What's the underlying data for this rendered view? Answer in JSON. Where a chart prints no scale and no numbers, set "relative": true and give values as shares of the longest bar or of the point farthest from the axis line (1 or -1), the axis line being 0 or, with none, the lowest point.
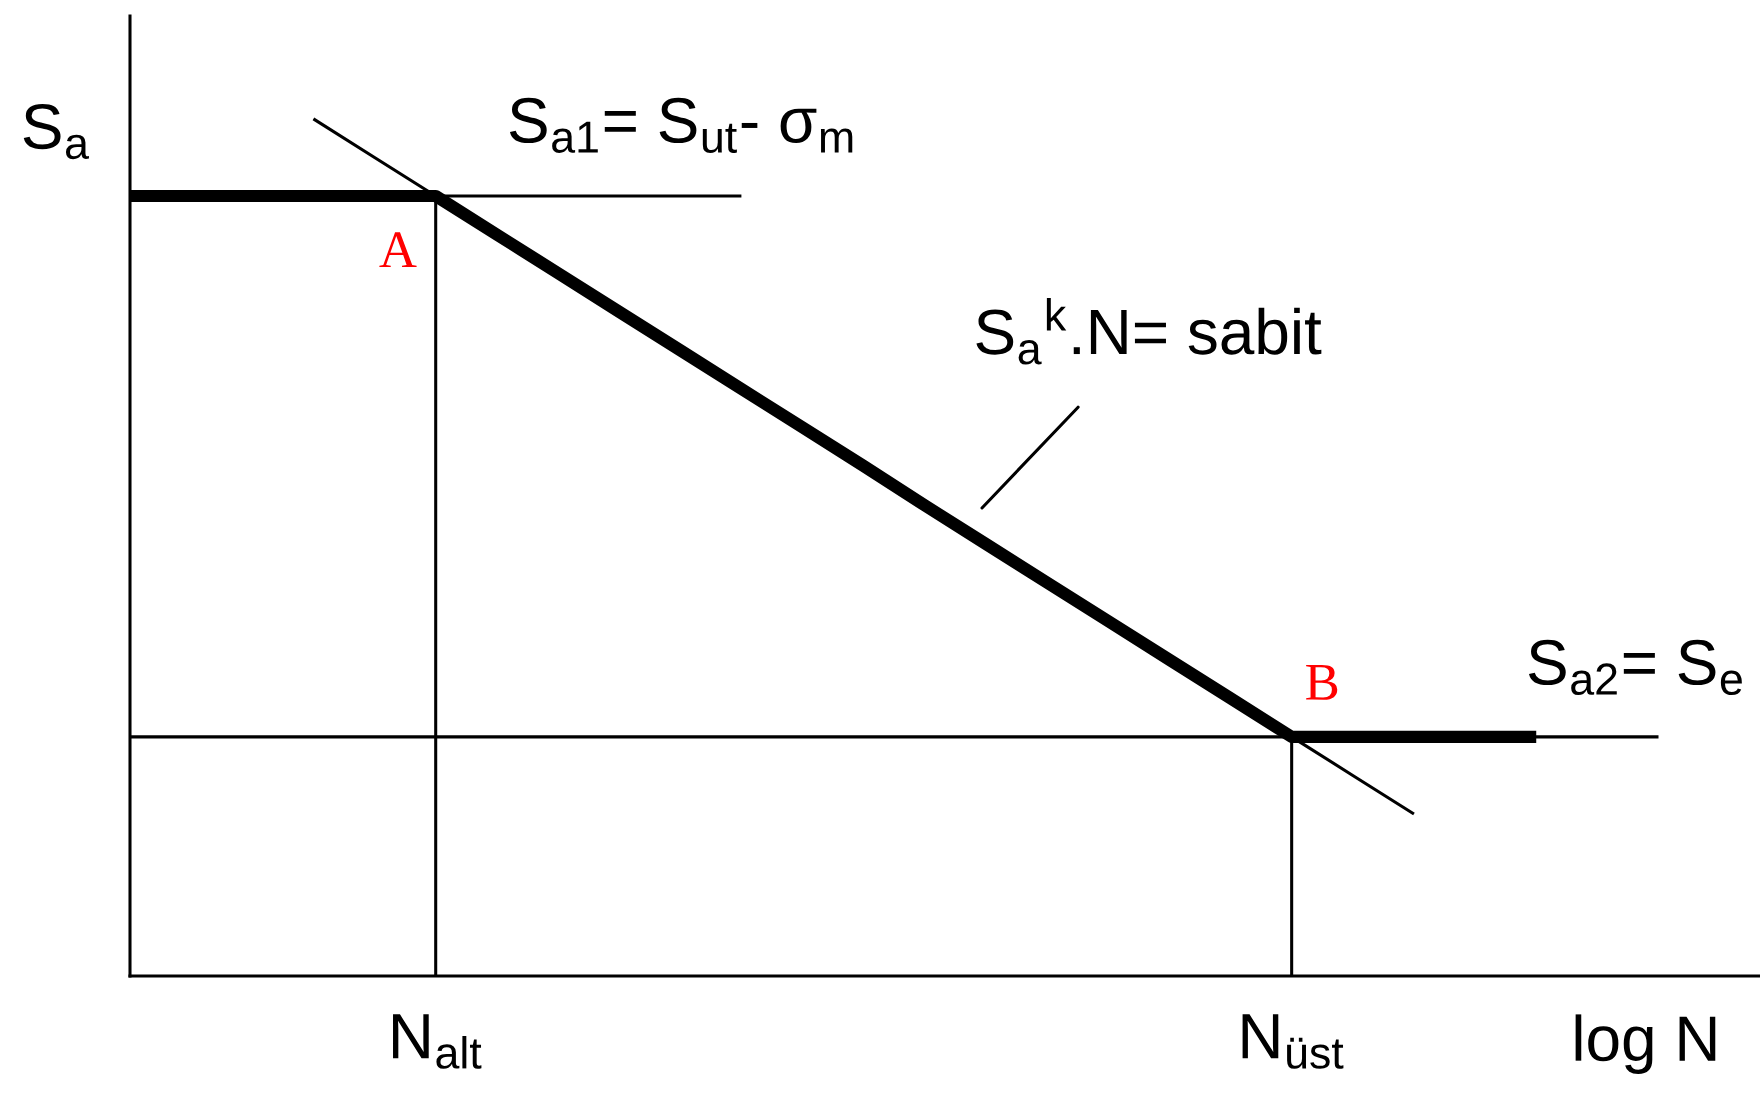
{
  "chart_data": {
    "type": "line",
    "relative": true,
    "xlabel": "log N",
    "ylabel": "S$_{a}$",
    "tick_labels": "x",
    "categories": [
      null,
      null,
      null,
      null,
      null,
      "N$_{alt}$",
      null,
      null,
      null,
      null,
      null,
      null,
      null,
      null,
      null,
      null,
      null,
      null,
      null,
      "N$_{üst}$",
      null,
      null,
      null,
      null,
      null,
      null
    ],
    "series": [
      {
        "color": "#000000",
        "values": [
          0.91,
          0.91,
          0.91,
          0.91,
          0.91,
          0.91,
          0.865,
          0.82,
          0.775,
          0.73,
          0.685,
          0.64,
          0.595,
          0.549,
          0.504,
          0.459,
          0.414,
          0.369,
          0.324,
          0.279,
          0.279,
          0.279,
          0.279,
          0.279,
          null,
          null
        ]
      },
      {
        "color": "#000000",
        "values": [
          null,
          null,
          null,
          null,
          null,
          0.91,
          0.91,
          0.91,
          0.91,
          0.91,
          0.91,
          null,
          null,
          null,
          null,
          null,
          null,
          null,
          null,
          null,
          null,
          null,
          null,
          null,
          null,
          null
        ]
      },
      {
        "color": "#000000",
        "values": [
          null,
          null,
          null,
          1,
          0.955,
          0.91,
          0.865,
          0.82,
          0.775,
          0.73,
          0.685,
          0.64,
          0.595,
          0.549,
          0.504,
          0.459,
          0.414,
          0.369,
          0.324,
          0.279,
          0.234,
          0.189,
          null,
          null,
          null,
          null
        ]
      },
      {
        "color": "#000000",
        "values": [
          0.279,
          0.279,
          0.279,
          0.279,
          0.279,
          0.279,
          0.279,
          0.279,
          0.279,
          0.279,
          0.279,
          0.279,
          0.279,
          0.279,
          0.279,
          0.279,
          0.279,
          0.279,
          0.279,
          0.279,
          0.279,
          0.279,
          0.279,
          0.279,
          0.279,
          0.279
        ]
      },
      {
        "type": "bar",
        "color": "#000000",
        "values": [
          null,
          null,
          null,
          null,
          null,
          0.91,
          null,
          null,
          null,
          null,
          null,
          null,
          null,
          null,
          null,
          null,
          null,
          null,
          null,
          0.279,
          null,
          null,
          null,
          null,
          null,
          null
        ]
      }
    ],
    "annotations": [
      "S$_{a1}$= S$_{ut}$- σ$_{m}$",
      {
        "text": "A",
        "x": "N$_{alt}$",
        "y": 0.91
      },
      "S$_{a}$$^{k}$.N= sabit",
      {
        "text": "B",
        "x": "N$_{üst}$",
        "y": 0.279
      },
      "S$_{a2}$= S$_{e}$"
    ]
  }
}
